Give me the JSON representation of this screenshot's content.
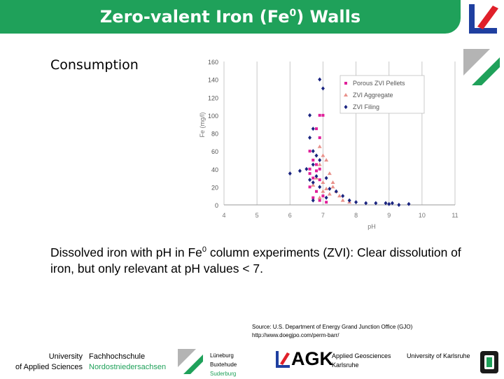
{
  "header": {
    "title_prefix": "Zero-valent Iron (Fe",
    "title_sup": "0",
    "title_suffix": ") Walls",
    "bar_color": "#1fa15a"
  },
  "subheading": "Consumption",
  "chart_data": {
    "type": "scatter",
    "title": "",
    "xlabel": "pH",
    "ylabel": "Fe (mg/l)",
    "xlim": [
      4,
      11
    ],
    "ylim": [
      0,
      160
    ],
    "x_ticks": [
      "4",
      "5",
      "6",
      "7",
      "8",
      "9",
      "10",
      "11"
    ],
    "y_ticks": [
      "0",
      "20",
      "40",
      "60",
      "80",
      "100",
      "120",
      "140",
      "160"
    ],
    "grid": "vertical",
    "legend_position": "top-right",
    "series": [
      {
        "name": "Porous ZVI Pellets",
        "color": "#e0209a",
        "marker": "square",
        "points": [
          [
            6.9,
            100
          ],
          [
            7.0,
            100
          ],
          [
            6.8,
            85
          ],
          [
            6.9,
            75
          ],
          [
            6.6,
            60
          ],
          [
            6.7,
            50
          ],
          [
            6.8,
            45
          ],
          [
            6.9,
            40
          ],
          [
            6.6,
            35
          ],
          [
            6.7,
            30
          ],
          [
            6.9,
            28
          ],
          [
            6.6,
            20
          ],
          [
            6.8,
            15
          ],
          [
            7.0,
            10
          ],
          [
            6.7,
            8
          ],
          [
            6.9,
            5
          ],
          [
            7.1,
            3
          ],
          [
            6.6,
            40
          ],
          [
            6.8,
            38
          ]
        ]
      },
      {
        "name": "ZVI Aggregate",
        "color": "#e8908a",
        "marker": "triangle",
        "points": [
          [
            6.9,
            65
          ],
          [
            7.0,
            55
          ],
          [
            7.1,
            50
          ],
          [
            6.9,
            45
          ],
          [
            7.2,
            35
          ],
          [
            6.8,
            30
          ],
          [
            7.0,
            25
          ],
          [
            7.3,
            20
          ],
          [
            6.7,
            22
          ],
          [
            7.1,
            18
          ],
          [
            7.4,
            15
          ],
          [
            7.2,
            12
          ],
          [
            7.5,
            10
          ],
          [
            6.9,
            8
          ],
          [
            7.6,
            5
          ],
          [
            7.8,
            3
          ],
          [
            7.0,
            15
          ],
          [
            7.3,
            25
          ]
        ]
      },
      {
        "name": "ZVI Filing",
        "color": "#1a2480",
        "marker": "diamond",
        "points": [
          [
            6.9,
            140
          ],
          [
            7.0,
            130
          ],
          [
            6.6,
            100
          ],
          [
            6.7,
            85
          ],
          [
            6.6,
            75
          ],
          [
            6.7,
            60
          ],
          [
            6.8,
            55
          ],
          [
            6.9,
            50
          ],
          [
            6.7,
            45
          ],
          [
            6.5,
            40
          ],
          [
            6.3,
            38
          ],
          [
            6.0,
            35
          ],
          [
            6.8,
            32
          ],
          [
            6.6,
            28
          ],
          [
            7.1,
            30
          ],
          [
            6.7,
            25
          ],
          [
            6.9,
            20
          ],
          [
            7.2,
            18
          ],
          [
            7.4,
            15
          ],
          [
            7.6,
            10
          ],
          [
            7.8,
            5
          ],
          [
            8.0,
            3
          ],
          [
            8.3,
            2
          ],
          [
            8.6,
            2
          ],
          [
            8.9,
            2
          ],
          [
            9.0,
            1
          ],
          [
            9.1,
            2
          ],
          [
            9.3,
            0
          ],
          [
            9.6,
            1
          ],
          [
            6.7,
            5
          ],
          [
            7.1,
            8
          ]
        ]
      }
    ]
  },
  "caption": {
    "prefix": "Dissolved iron with pH in Fe",
    "sup": "0",
    "suffix": " column experiments (ZVI): Clear dissolution of iron, but only relevant at pH values < 7."
  },
  "source": {
    "line1": "Source: U.S. Department of Energy Grand Junction Office (GJO)",
    "line2": "http://www.doegjpo.com/perm-barr/"
  },
  "footer": {
    "uni_line1": "University",
    "uni_line2": "of Applied Sciences",
    "fh_line1": "Fachhochschule",
    "fh_line2": "Nordostniedersachsen",
    "city1": "Lüneburg",
    "city2": "Buxtehude",
    "city3": "Suderburg",
    "agk": "AGK",
    "agk_line1": "Applied Geosciences",
    "agk_line2": "Karlsruhe",
    "ka": "University of Karlsruhe"
  }
}
